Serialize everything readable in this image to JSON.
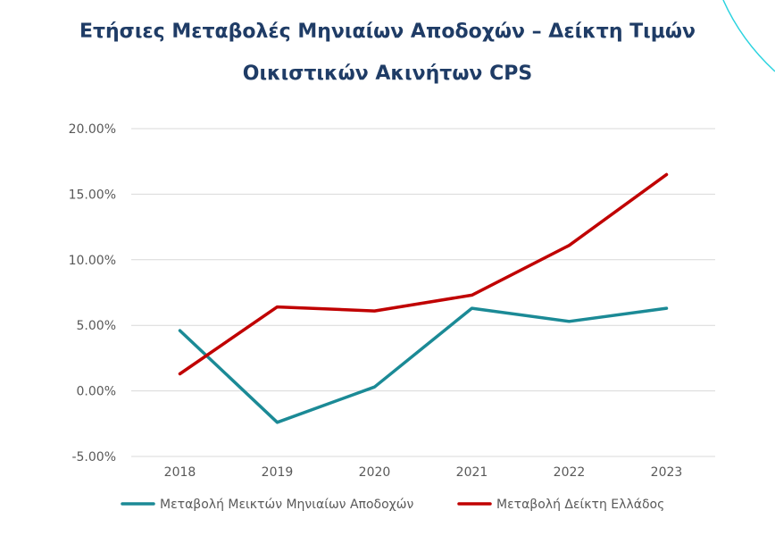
{
  "title": {
    "line1": "Ετήσιες Μεταβολές Μηνιαίων Αποδοχών – Δείκτη Τιμών",
    "line2": "Οικιστικών Ακινήτων CPS"
  },
  "colors": {
    "title": "#1f3c66",
    "grid": "#d9d9d9",
    "axis_text": "#595959",
    "decor_arc": "#2bd3df"
  },
  "chart_data": {
    "type": "line",
    "title": "Ετήσιες Μεταβολές Μηνιαίων Αποδοχών – Δείκτη Τιμών Οικιστικών Ακινήτων CPS",
    "categories": [
      "2018",
      "2019",
      "2020",
      "2021",
      "2022",
      "2023"
    ],
    "y_ticks": [
      "20.00%",
      "15.00%",
      "10.00%",
      "5.00%",
      "0.00%",
      "-5.00%"
    ],
    "ylim": [
      -5,
      20
    ],
    "grid": true,
    "legend_position": "bottom",
    "series": [
      {
        "name": "Μεταβολή Μεικτών Μηνιαίων Αποδοχών",
        "color": "#1b8a96",
        "values": [
          4.6,
          -2.4,
          0.3,
          6.3,
          5.3,
          6.3
        ]
      },
      {
        "name": "Μεταβολή Δείκτη Ελλάδος",
        "color": "#c00000",
        "values": [
          1.3,
          6.4,
          6.1,
          7.3,
          11.1,
          16.5
        ]
      }
    ]
  }
}
